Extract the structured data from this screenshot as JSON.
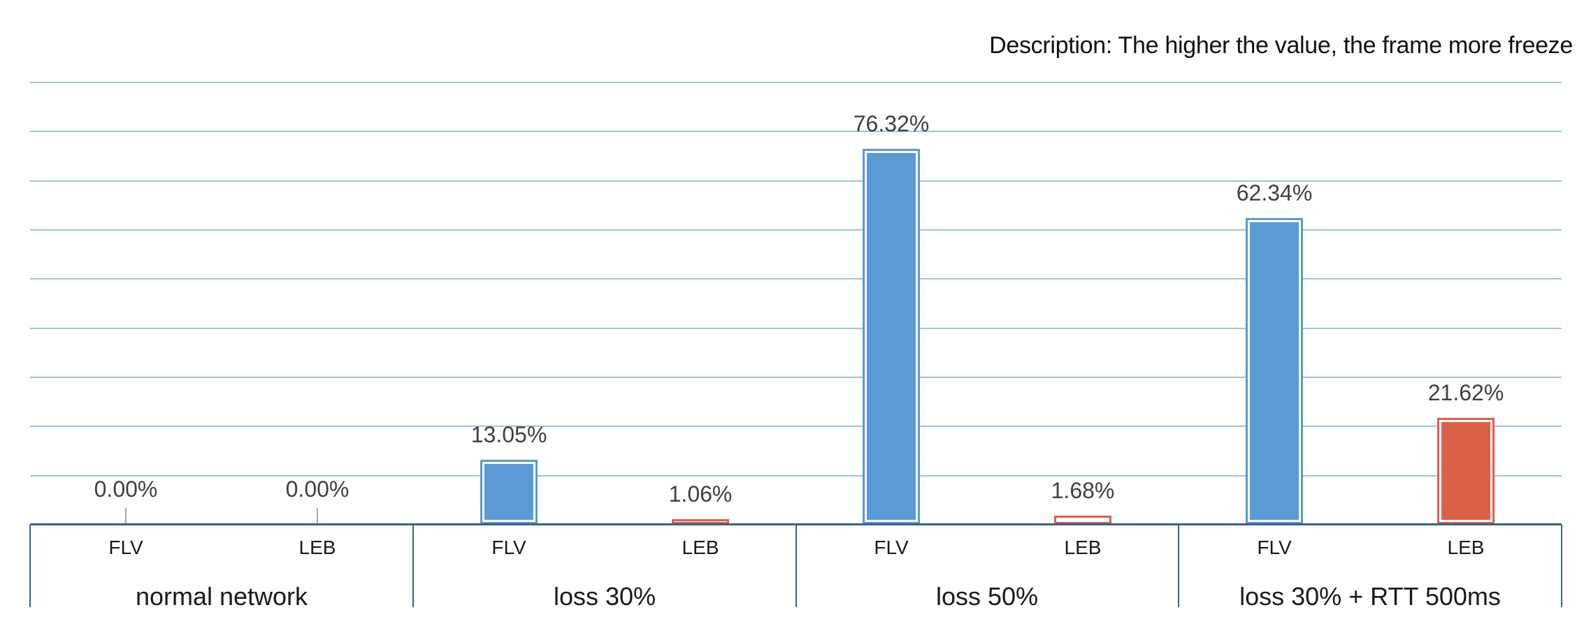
{
  "description": "Description: The higher the value, the frame more freeze",
  "colors": {
    "flv_bar": "#5B9BD5",
    "leb_bar": "#DC6149",
    "gridline": "#9DC3E6",
    "axis_line": "#35618F",
    "value_label": "#404040",
    "category_label": "#1A1A1A",
    "leader_line": "#A6A6A6",
    "background": "#FFFFFF"
  },
  "chart_data": {
    "type": "bar",
    "title": "Description: The higher the value, the frame more freeze",
    "categories": [
      "normal network",
      "loss 30%",
      "loss 50%",
      "loss 30% + RTT 500ms"
    ],
    "sub_categories": [
      "FLV",
      "LEB"
    ],
    "series": [
      {
        "name": "FLV",
        "color": "#5B9BD5",
        "values": [
          0.0,
          13.05,
          76.32,
          62.34
        ],
        "labels": [
          "0.00%",
          "13.05%",
          "76.32%",
          "62.34%"
        ]
      },
      {
        "name": "LEB",
        "color": "#DC6149",
        "values": [
          0.0,
          1.06,
          1.68,
          21.62
        ],
        "labels": [
          "0.00%",
          "1.06%",
          "1.68%",
          "21.62%"
        ]
      }
    ],
    "xlabel": "",
    "ylabel": "",
    "ylim": [
      0,
      90
    ],
    "gridline_step": 10,
    "grid": true,
    "y_axis_labels_visible": false,
    "legend_position": "none",
    "value_labels_visible": true
  }
}
